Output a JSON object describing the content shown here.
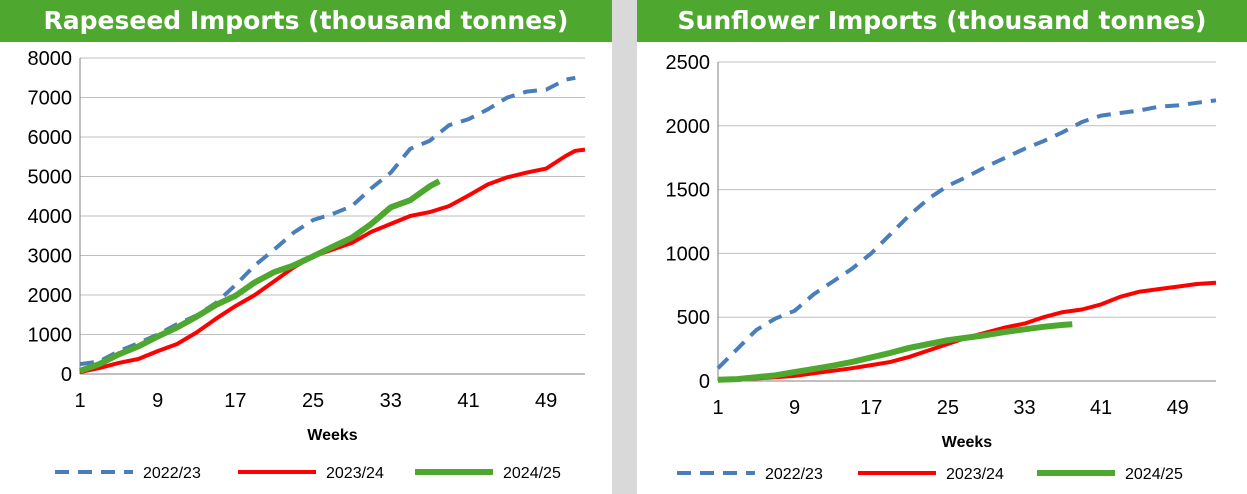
{
  "colors": {
    "title_bg": "#4ea72e",
    "series_2022_23": "#4a7ebb",
    "series_2023_24": "#ff0000",
    "series_2024_25": "#4ea72e"
  },
  "chart_data": [
    {
      "type": "line",
      "title": "Rapeseed Imports (thousand tonnes)",
      "xlabel": "Weeks",
      "ylabel": "",
      "xlim": [
        1,
        53
      ],
      "ylim": [
        0,
        8000
      ],
      "yticks": [
        0,
        1000,
        2000,
        3000,
        4000,
        5000,
        6000,
        7000,
        8000
      ],
      "xticks": [
        1,
        9,
        17,
        25,
        33,
        41,
        49
      ],
      "grid": true,
      "legend_position": "bottom",
      "series": [
        {
          "name": "2022/23",
          "x": [
            1,
            3,
            5,
            7,
            9,
            11,
            13,
            15,
            17,
            19,
            21,
            23,
            25,
            27,
            29,
            31,
            33,
            35,
            37,
            39,
            41,
            43,
            45,
            47,
            49,
            51,
            52
          ],
          "values": [
            250,
            320,
            580,
            780,
            1000,
            1260,
            1480,
            1800,
            2250,
            2750,
            3150,
            3580,
            3900,
            4050,
            4250,
            4700,
            5100,
            5700,
            5900,
            6300,
            6450,
            6700,
            7000,
            7150,
            7200,
            7450,
            7500
          ]
        },
        {
          "name": "2023/24",
          "x": [
            1,
            3,
            5,
            7,
            9,
            11,
            13,
            15,
            17,
            19,
            21,
            23,
            25,
            27,
            29,
            31,
            33,
            35,
            37,
            39,
            41,
            43,
            45,
            47,
            49,
            51,
            52,
            53
          ],
          "values": [
            50,
            150,
            280,
            380,
            580,
            760,
            1050,
            1400,
            1720,
            2000,
            2350,
            2700,
            2980,
            3150,
            3320,
            3600,
            3800,
            4000,
            4100,
            4250,
            4520,
            4800,
            4980,
            5100,
            5200,
            5520,
            5650,
            5680
          ]
        },
        {
          "name": "2024/25",
          "x": [
            1,
            3,
            5,
            7,
            9,
            11,
            13,
            15,
            17,
            19,
            21,
            23,
            25,
            27,
            29,
            31,
            33,
            35,
            37,
            38
          ],
          "values": [
            80,
            250,
            500,
            700,
            950,
            1180,
            1450,
            1750,
            1980,
            2320,
            2580,
            2750,
            2980,
            3220,
            3450,
            3800,
            4220,
            4400,
            4750,
            4880
          ]
        }
      ]
    },
    {
      "type": "line",
      "title": "Sunflower Imports (thousand tonnes)",
      "xlabel": "Weeks",
      "ylabel": "",
      "xlim": [
        1,
        53
      ],
      "ylim": [
        0,
        2500
      ],
      "yticks": [
        0,
        500,
        1000,
        1500,
        2000,
        2500
      ],
      "xticks": [
        1,
        9,
        17,
        25,
        33,
        41,
        49
      ],
      "grid": true,
      "legend_position": "bottom",
      "series": [
        {
          "name": "2022/23",
          "x": [
            1,
            3,
            5,
            7,
            9,
            11,
            13,
            15,
            17,
            19,
            21,
            23,
            25,
            27,
            29,
            31,
            33,
            35,
            37,
            39,
            41,
            43,
            45,
            47,
            49,
            51,
            53
          ],
          "values": [
            100,
            250,
            400,
            490,
            550,
            680,
            780,
            880,
            1000,
            1150,
            1300,
            1430,
            1530,
            1600,
            1680,
            1750,
            1820,
            1880,
            1950,
            2030,
            2080,
            2100,
            2120,
            2150,
            2160,
            2180,
            2200
          ]
        },
        {
          "name": "2023/24",
          "x": [
            1,
            3,
            5,
            7,
            9,
            11,
            13,
            15,
            17,
            19,
            21,
            23,
            25,
            27,
            29,
            31,
            33,
            35,
            37,
            39,
            41,
            43,
            45,
            47,
            49,
            51,
            53
          ],
          "values": [
            10,
            15,
            20,
            30,
            40,
            60,
            80,
            100,
            125,
            150,
            190,
            240,
            290,
            340,
            380,
            420,
            450,
            500,
            540,
            560,
            600,
            660,
            700,
            720,
            740,
            760,
            770
          ]
        },
        {
          "name": "2024/25",
          "x": [
            1,
            3,
            5,
            7,
            9,
            11,
            13,
            15,
            17,
            19,
            21,
            23,
            25,
            27,
            29,
            31,
            33,
            35,
            37,
            38
          ],
          "values": [
            10,
            15,
            30,
            45,
            70,
            95,
            120,
            150,
            185,
            220,
            260,
            290,
            320,
            340,
            360,
            385,
            405,
            425,
            440,
            445
          ]
        }
      ]
    }
  ]
}
